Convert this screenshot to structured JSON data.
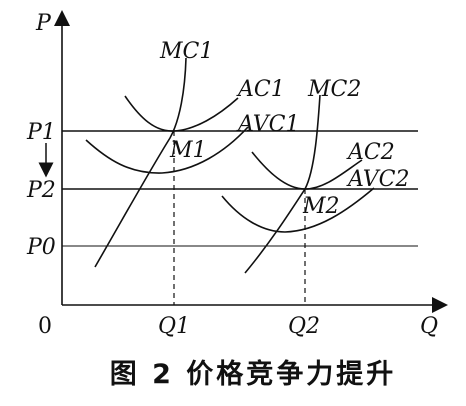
{
  "axes": {
    "y_label": "P",
    "x_label": "Q",
    "origin_label": "0"
  },
  "price_levels": [
    "P1",
    "P2",
    "P0"
  ],
  "quantity_ticks": [
    "Q1",
    "Q2"
  ],
  "curves": {
    "mc1": "MC1",
    "ac1": "AC1",
    "avc1": "AVC1",
    "mc2": "MC2",
    "ac2": "AC2",
    "avc2": "AVC2"
  },
  "points": {
    "m1": "M1",
    "m2": "M2"
  },
  "caption": "图 2   价格竞争力提升",
  "colors": {
    "ink": "#111111"
  }
}
